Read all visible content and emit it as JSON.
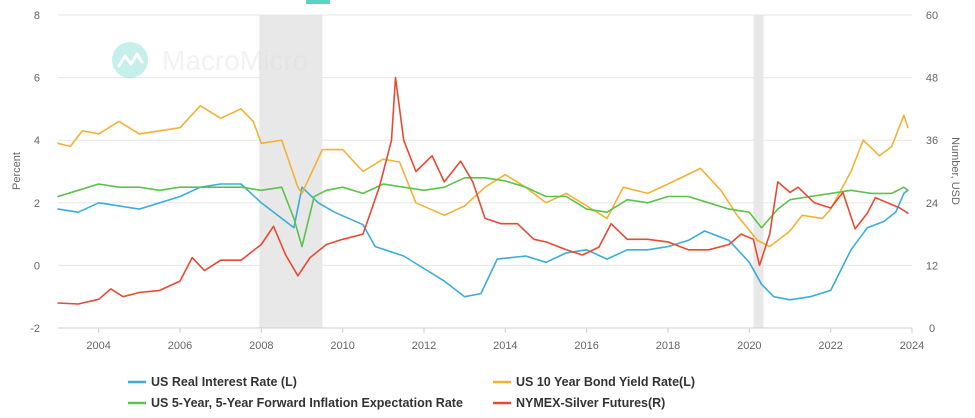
{
  "watermark": {
    "text": "MacroMicro"
  },
  "colors": {
    "real_rate": "#3aaed8",
    "bond_yield": "#f2b233",
    "inflation_exp": "#5dc24b",
    "silver": "#e64a33",
    "recession": "#e8e8e8",
    "grid": "#e6e6e6",
    "accent": "#5bd3c4"
  },
  "chart_data": {
    "type": "line",
    "x_range": [
      2003.0,
      2024.0
    ],
    "x_ticks": [
      "2004",
      "2006",
      "2008",
      "2010",
      "2012",
      "2014",
      "2016",
      "2018",
      "2020",
      "2022",
      "2024"
    ],
    "y_left": {
      "label": "Percent",
      "range": [
        -2,
        8
      ],
      "ticks": [
        "-2",
        "0",
        "2",
        "4",
        "6",
        "8"
      ]
    },
    "y_right": {
      "label": "Number, USD",
      "range": [
        0,
        60
      ],
      "ticks": [
        "0",
        "12",
        "24",
        "36",
        "48",
        "60"
      ]
    },
    "recession_shading": [
      [
        2007.95,
        2009.5
      ],
      [
        2020.1,
        2020.35
      ]
    ],
    "grid": true,
    "legend_placement": "bottom",
    "series": [
      {
        "name": "US Real Interest Rate (L)",
        "axis": "left",
        "color_key": "real_rate",
        "points": [
          [
            2003.0,
            1.8
          ],
          [
            2003.5,
            1.7
          ],
          [
            2004.0,
            2.0
          ],
          [
            2004.5,
            1.9
          ],
          [
            2005.0,
            1.8
          ],
          [
            2005.5,
            2.0
          ],
          [
            2006.0,
            2.2
          ],
          [
            2006.5,
            2.5
          ],
          [
            2007.0,
            2.6
          ],
          [
            2007.5,
            2.6
          ],
          [
            2008.0,
            2.0
          ],
          [
            2008.5,
            1.5
          ],
          [
            2008.8,
            1.2
          ],
          [
            2009.0,
            2.5
          ],
          [
            2009.4,
            2.0
          ],
          [
            2009.8,
            1.7
          ],
          [
            2010.5,
            1.3
          ],
          [
            2010.8,
            0.6
          ],
          [
            2011.5,
            0.3
          ],
          [
            2012.0,
            -0.1
          ],
          [
            2012.5,
            -0.5
          ],
          [
            2013.0,
            -1.0
          ],
          [
            2013.4,
            -0.9
          ],
          [
            2013.8,
            0.2
          ],
          [
            2014.5,
            0.3
          ],
          [
            2015.0,
            0.1
          ],
          [
            2015.5,
            0.4
          ],
          [
            2016.0,
            0.5
          ],
          [
            2016.5,
            0.2
          ],
          [
            2017.0,
            0.5
          ],
          [
            2017.5,
            0.5
          ],
          [
            2018.0,
            0.6
          ],
          [
            2018.5,
            0.8
          ],
          [
            2018.9,
            1.1
          ],
          [
            2019.5,
            0.8
          ],
          [
            2020.0,
            0.1
          ],
          [
            2020.3,
            -0.6
          ],
          [
            2020.6,
            -1.0
          ],
          [
            2021.0,
            -1.1
          ],
          [
            2021.5,
            -1.0
          ],
          [
            2022.0,
            -0.8
          ],
          [
            2022.5,
            0.5
          ],
          [
            2022.9,
            1.2
          ],
          [
            2023.3,
            1.4
          ],
          [
            2023.6,
            1.7
          ],
          [
            2023.8,
            2.3
          ],
          [
            2023.9,
            2.4
          ]
        ]
      },
      {
        "name": "US 10 Year Bond Yield Rate(L)",
        "axis": "left",
        "color_key": "bond_yield",
        "points": [
          [
            2003.0,
            3.9
          ],
          [
            2003.3,
            3.8
          ],
          [
            2003.6,
            4.3
          ],
          [
            2004.0,
            4.2
          ],
          [
            2004.5,
            4.6
          ],
          [
            2005.0,
            4.2
          ],
          [
            2005.5,
            4.3
          ],
          [
            2006.0,
            4.4
          ],
          [
            2006.5,
            5.1
          ],
          [
            2007.0,
            4.7
          ],
          [
            2007.5,
            5.0
          ],
          [
            2007.8,
            4.6
          ],
          [
            2008.0,
            3.9
          ],
          [
            2008.5,
            4.0
          ],
          [
            2008.9,
            2.5
          ],
          [
            2009.0,
            2.3
          ],
          [
            2009.5,
            3.7
          ],
          [
            2010.0,
            3.7
          ],
          [
            2010.5,
            3.0
          ],
          [
            2011.0,
            3.4
          ],
          [
            2011.4,
            3.3
          ],
          [
            2011.8,
            2.0
          ],
          [
            2012.5,
            1.6
          ],
          [
            2013.0,
            1.9
          ],
          [
            2013.5,
            2.5
          ],
          [
            2014.0,
            2.9
          ],
          [
            2014.5,
            2.5
          ],
          [
            2015.0,
            2.0
          ],
          [
            2015.5,
            2.3
          ],
          [
            2016.0,
            1.9
          ],
          [
            2016.5,
            1.5
          ],
          [
            2016.9,
            2.5
          ],
          [
            2017.5,
            2.3
          ],
          [
            2018.0,
            2.6
          ],
          [
            2018.8,
            3.1
          ],
          [
            2019.3,
            2.4
          ],
          [
            2019.7,
            1.6
          ],
          [
            2020.2,
            0.8
          ],
          [
            2020.5,
            0.6
          ],
          [
            2021.0,
            1.1
          ],
          [
            2021.3,
            1.6
          ],
          [
            2021.8,
            1.5
          ],
          [
            2022.0,
            1.8
          ],
          [
            2022.5,
            3.0
          ],
          [
            2022.8,
            4.0
          ],
          [
            2023.2,
            3.5
          ],
          [
            2023.5,
            3.8
          ],
          [
            2023.8,
            4.8
          ],
          [
            2023.9,
            4.4
          ]
        ]
      },
      {
        "name": "US 5-Year, 5-Year Forward Inflation Expectation Rate",
        "axis": "left",
        "color_key": "inflation_exp",
        "points": [
          [
            2003.0,
            2.2
          ],
          [
            2003.5,
            2.4
          ],
          [
            2004.0,
            2.6
          ],
          [
            2004.5,
            2.5
          ],
          [
            2005.0,
            2.5
          ],
          [
            2005.5,
            2.4
          ],
          [
            2006.0,
            2.5
          ],
          [
            2006.5,
            2.5
          ],
          [
            2007.0,
            2.5
          ],
          [
            2007.5,
            2.5
          ],
          [
            2008.0,
            2.4
          ],
          [
            2008.5,
            2.5
          ],
          [
            2008.8,
            1.5
          ],
          [
            2009.0,
            0.6
          ],
          [
            2009.3,
            2.2
          ],
          [
            2009.6,
            2.4
          ],
          [
            2010.0,
            2.5
          ],
          [
            2010.5,
            2.3
          ],
          [
            2011.0,
            2.6
          ],
          [
            2011.5,
            2.5
          ],
          [
            2012.0,
            2.4
          ],
          [
            2012.5,
            2.5
          ],
          [
            2013.0,
            2.8
          ],
          [
            2013.5,
            2.8
          ],
          [
            2014.0,
            2.7
          ],
          [
            2014.5,
            2.5
          ],
          [
            2015.0,
            2.2
          ],
          [
            2015.5,
            2.2
          ],
          [
            2016.0,
            1.8
          ],
          [
            2016.5,
            1.7
          ],
          [
            2017.0,
            2.1
          ],
          [
            2017.5,
            2.0
          ],
          [
            2018.0,
            2.2
          ],
          [
            2018.5,
            2.2
          ],
          [
            2019.0,
            2.0
          ],
          [
            2019.5,
            1.8
          ],
          [
            2020.0,
            1.7
          ],
          [
            2020.3,
            1.2
          ],
          [
            2020.7,
            1.8
          ],
          [
            2021.0,
            2.1
          ],
          [
            2021.5,
            2.2
          ],
          [
            2022.0,
            2.3
          ],
          [
            2022.5,
            2.4
          ],
          [
            2023.0,
            2.3
          ],
          [
            2023.5,
            2.3
          ],
          [
            2023.8,
            2.5
          ],
          [
            2023.9,
            2.4
          ]
        ]
      },
      {
        "name": "NYMEX-Silver Futures(R)",
        "axis": "right",
        "color_key": "silver",
        "points": [
          [
            2003.0,
            4.8
          ],
          [
            2003.5,
            4.6
          ],
          [
            2004.0,
            5.5
          ],
          [
            2004.3,
            7.5
          ],
          [
            2004.6,
            6.0
          ],
          [
            2005.0,
            6.8
          ],
          [
            2005.5,
            7.2
          ],
          [
            2006.0,
            9.0
          ],
          [
            2006.3,
            13.5
          ],
          [
            2006.6,
            11.0
          ],
          [
            2007.0,
            13.0
          ],
          [
            2007.5,
            13.0
          ],
          [
            2008.0,
            16.0
          ],
          [
            2008.3,
            19.5
          ],
          [
            2008.6,
            14.0
          ],
          [
            2008.9,
            10.0
          ],
          [
            2009.2,
            13.5
          ],
          [
            2009.6,
            16.0
          ],
          [
            2010.0,
            17.0
          ],
          [
            2010.5,
            18.0
          ],
          [
            2010.9,
            27.0
          ],
          [
            2011.2,
            36.0
          ],
          [
            2011.3,
            48.0
          ],
          [
            2011.5,
            36.0
          ],
          [
            2011.8,
            30.0
          ],
          [
            2012.2,
            33.0
          ],
          [
            2012.5,
            28.0
          ],
          [
            2012.9,
            32.0
          ],
          [
            2013.2,
            28.0
          ],
          [
            2013.5,
            21.0
          ],
          [
            2013.9,
            20.0
          ],
          [
            2014.3,
            20.0
          ],
          [
            2014.7,
            17.0
          ],
          [
            2015.0,
            16.5
          ],
          [
            2015.5,
            15.0
          ],
          [
            2015.9,
            14.0
          ],
          [
            2016.3,
            15.5
          ],
          [
            2016.6,
            20.0
          ],
          [
            2017.0,
            17.0
          ],
          [
            2017.5,
            17.0
          ],
          [
            2018.0,
            16.5
          ],
          [
            2018.5,
            15.0
          ],
          [
            2019.0,
            15.0
          ],
          [
            2019.5,
            16.0
          ],
          [
            2019.8,
            18.0
          ],
          [
            2020.1,
            17.0
          ],
          [
            2020.25,
            12.0
          ],
          [
            2020.5,
            18.0
          ],
          [
            2020.7,
            28.0
          ],
          [
            2021.0,
            26.0
          ],
          [
            2021.2,
            27.0
          ],
          [
            2021.6,
            24.0
          ],
          [
            2022.0,
            23.0
          ],
          [
            2022.3,
            26.0
          ],
          [
            2022.6,
            19.0
          ],
          [
            2022.9,
            22.0
          ],
          [
            2023.1,
            25.0
          ],
          [
            2023.4,
            24.0
          ],
          [
            2023.7,
            23.0
          ],
          [
            2023.9,
            22.0
          ]
        ]
      }
    ]
  }
}
